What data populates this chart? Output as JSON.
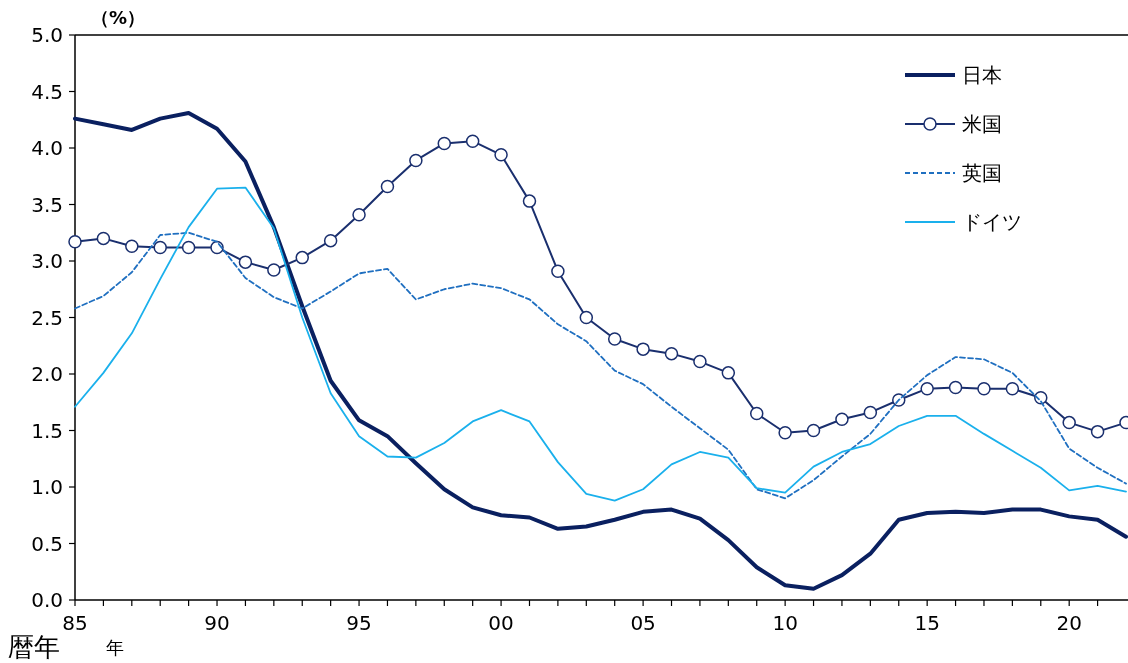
{
  "chart_data": {
    "type": "line",
    "ylabel": "（%）",
    "xlabel": "年",
    "annotations": [
      "暦年"
    ],
    "x": [
      1985,
      1986,
      1987,
      1988,
      1989,
      1990,
      1991,
      1992,
      1993,
      1994,
      1995,
      1996,
      1997,
      1998,
      1999,
      2000,
      2001,
      2002,
      2003,
      2004,
      2005,
      2006,
      2007,
      2008,
      2009,
      2010,
      2011,
      2012,
      2013,
      2014,
      2015,
      2016,
      2017,
      2018,
      2019,
      2020,
      2021,
      2022
    ],
    "series": [
      {
        "name": "日本",
        "color": "#0a2060",
        "line_style": "solid",
        "marker": "none",
        "values": [
          4.26,
          4.21,
          4.16,
          4.26,
          4.31,
          4.17,
          3.88,
          3.3,
          2.6,
          1.94,
          1.59,
          1.45,
          1.21,
          0.98,
          0.82,
          0.75,
          0.73,
          0.63,
          0.65,
          0.71,
          0.78,
          0.8,
          0.72,
          0.53,
          0.29,
          0.13,
          0.1,
          0.22,
          0.41,
          0.71,
          0.77,
          0.78,
          0.77,
          0.8,
          0.8,
          0.74,
          0.71,
          0.56
        ]
      },
      {
        "name": "米国",
        "color": "#1a2f6e",
        "line_style": "solid",
        "marker": "circle",
        "values": [
          3.17,
          3.2,
          3.13,
          3.12,
          3.12,
          3.12,
          2.99,
          2.92,
          3.03,
          3.18,
          3.41,
          3.66,
          3.89,
          4.04,
          4.06,
          3.94,
          3.53,
          2.91,
          2.5,
          2.31,
          2.22,
          2.18,
          2.11,
          2.01,
          1.65,
          1.48,
          1.5,
          1.6,
          1.66,
          1.77,
          1.87,
          1.88,
          1.87,
          1.87,
          1.79,
          1.57,
          1.49,
          1.57
        ]
      },
      {
        "name": "英国",
        "color": "#1f6fc0",
        "line_style": "dashed",
        "marker": "none",
        "values": [
          2.58,
          2.69,
          2.9,
          3.23,
          3.25,
          3.17,
          2.85,
          2.68,
          2.58,
          2.73,
          2.89,
          2.93,
          2.66,
          2.75,
          2.8,
          2.76,
          2.66,
          2.44,
          2.29,
          2.03,
          1.91,
          1.71,
          1.52,
          1.33,
          0.98,
          0.9,
          1.06,
          1.27,
          1.47,
          1.77,
          1.99,
          2.15,
          2.13,
          2.01,
          1.76,
          1.34,
          1.17,
          1.03
        ]
      },
      {
        "name": "ドイツ",
        "color": "#1ab0ec",
        "line_style": "solid",
        "marker": "none",
        "values": [
          1.71,
          2.01,
          2.36,
          2.84,
          3.3,
          3.64,
          3.65,
          3.29,
          2.5,
          1.83,
          1.45,
          1.27,
          1.26,
          1.39,
          1.58,
          1.68,
          1.58,
          1.22,
          0.94,
          0.88,
          0.98,
          1.2,
          1.31,
          1.26,
          0.99,
          0.95,
          1.18,
          1.31,
          1.38,
          1.54,
          1.63,
          1.63,
          1.47,
          1.32,
          1.17,
          0.97,
          1.01,
          0.96
        ]
      }
    ],
    "xlim": [
      1985,
      2022
    ],
    "ylim": [
      0,
      5
    ],
    "xticks": [
      {
        "value": 1985,
        "label": "85"
      },
      {
        "value": 1986,
        "label": null
      },
      {
        "value": 1987,
        "label": null
      },
      {
        "value": 1988,
        "label": null
      },
      {
        "value": 1989,
        "label": null
      },
      {
        "value": 1990,
        "label": "90"
      },
      {
        "value": 1991,
        "label": null
      },
      {
        "value": 1992,
        "label": null
      },
      {
        "value": 1993,
        "label": null
      },
      {
        "value": 1994,
        "label": null
      },
      {
        "value": 1995,
        "label": "95"
      },
      {
        "value": 1996,
        "label": null
      },
      {
        "value": 1997,
        "label": null
      },
      {
        "value": 1998,
        "label": null
      },
      {
        "value": 1999,
        "label": null
      },
      {
        "value": 2000,
        "label": "00"
      },
      {
        "value": 2001,
        "label": null
      },
      {
        "value": 2002,
        "label": null
      },
      {
        "value": 2003,
        "label": null
      },
      {
        "value": 2004,
        "label": null
      },
      {
        "value": 2005,
        "label": "05"
      },
      {
        "value": 2006,
        "label": null
      },
      {
        "value": 2007,
        "label": null
      },
      {
        "value": 2008,
        "label": null
      },
      {
        "value": 2009,
        "label": null
      },
      {
        "value": 2010,
        "label": "10"
      },
      {
        "value": 2011,
        "label": null
      },
      {
        "value": 2012,
        "label": null
      },
      {
        "value": 2013,
        "label": null
      },
      {
        "value": 2014,
        "label": null
      },
      {
        "value": 2015,
        "label": "15"
      },
      {
        "value": 2016,
        "label": null
      },
      {
        "value": 2017,
        "label": null
      },
      {
        "value": 2018,
        "label": null
      },
      {
        "value": 2019,
        "label": null
      },
      {
        "value": 2020,
        "label": "20"
      },
      {
        "value": 2021,
        "label": null
      }
    ],
    "yticks": [
      {
        "value": 0,
        "label": "0.0"
      },
      {
        "value": 0.5,
        "label": "0.5"
      },
      {
        "value": 1,
        "label": "1.0"
      },
      {
        "value": 1.5,
        "label": "1.5"
      },
      {
        "value": 2,
        "label": "2.0"
      },
      {
        "value": 2.5,
        "label": "2.5"
      },
      {
        "value": 3,
        "label": "3.0"
      },
      {
        "value": 3.5,
        "label": "3.5"
      },
      {
        "value": 4,
        "label": "4.0"
      },
      {
        "value": 4.5,
        "label": "4.5"
      },
      {
        "value": 5,
        "label": "5.0"
      }
    ],
    "grid": false,
    "legend": "top right"
  }
}
